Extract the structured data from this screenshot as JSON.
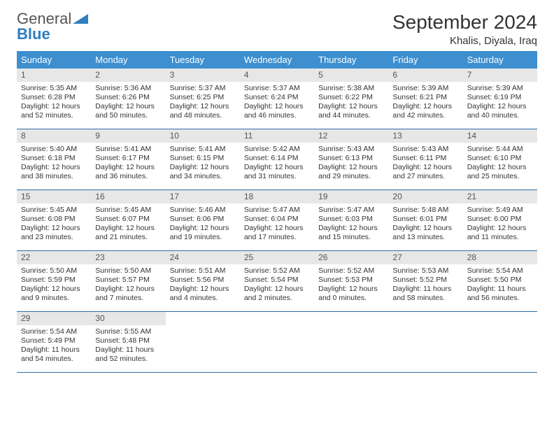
{
  "brand": {
    "word1": "General",
    "word2": "Blue"
  },
  "title": "September 2024",
  "location": "Khalis, Diyala, Iraq",
  "colors": {
    "header_bg": "#3d8fcf",
    "header_text": "#ffffff",
    "daynum_bg": "#e7e7e7",
    "row_border": "#2f6ea8",
    "brand_blue": "#2f7ec1"
  },
  "weekdays": [
    "Sunday",
    "Monday",
    "Tuesday",
    "Wednesday",
    "Thursday",
    "Friday",
    "Saturday"
  ],
  "cells": [
    {
      "day": "1",
      "sunrise": "5:35 AM",
      "sunset": "6:28 PM",
      "dl": "12 hours and 52 minutes."
    },
    {
      "day": "2",
      "sunrise": "5:36 AM",
      "sunset": "6:26 PM",
      "dl": "12 hours and 50 minutes."
    },
    {
      "day": "3",
      "sunrise": "5:37 AM",
      "sunset": "6:25 PM",
      "dl": "12 hours and 48 minutes."
    },
    {
      "day": "4",
      "sunrise": "5:37 AM",
      "sunset": "6:24 PM",
      "dl": "12 hours and 46 minutes."
    },
    {
      "day": "5",
      "sunrise": "5:38 AM",
      "sunset": "6:22 PM",
      "dl": "12 hours and 44 minutes."
    },
    {
      "day": "6",
      "sunrise": "5:39 AM",
      "sunset": "6:21 PM",
      "dl": "12 hours and 42 minutes."
    },
    {
      "day": "7",
      "sunrise": "5:39 AM",
      "sunset": "6:19 PM",
      "dl": "12 hours and 40 minutes."
    },
    {
      "day": "8",
      "sunrise": "5:40 AM",
      "sunset": "6:18 PM",
      "dl": "12 hours and 38 minutes."
    },
    {
      "day": "9",
      "sunrise": "5:41 AM",
      "sunset": "6:17 PM",
      "dl": "12 hours and 36 minutes."
    },
    {
      "day": "10",
      "sunrise": "5:41 AM",
      "sunset": "6:15 PM",
      "dl": "12 hours and 34 minutes."
    },
    {
      "day": "11",
      "sunrise": "5:42 AM",
      "sunset": "6:14 PM",
      "dl": "12 hours and 31 minutes."
    },
    {
      "day": "12",
      "sunrise": "5:43 AM",
      "sunset": "6:13 PM",
      "dl": "12 hours and 29 minutes."
    },
    {
      "day": "13",
      "sunrise": "5:43 AM",
      "sunset": "6:11 PM",
      "dl": "12 hours and 27 minutes."
    },
    {
      "day": "14",
      "sunrise": "5:44 AM",
      "sunset": "6:10 PM",
      "dl": "12 hours and 25 minutes."
    },
    {
      "day": "15",
      "sunrise": "5:45 AM",
      "sunset": "6:08 PM",
      "dl": "12 hours and 23 minutes."
    },
    {
      "day": "16",
      "sunrise": "5:45 AM",
      "sunset": "6:07 PM",
      "dl": "12 hours and 21 minutes."
    },
    {
      "day": "17",
      "sunrise": "5:46 AM",
      "sunset": "6:06 PM",
      "dl": "12 hours and 19 minutes."
    },
    {
      "day": "18",
      "sunrise": "5:47 AM",
      "sunset": "6:04 PM",
      "dl": "12 hours and 17 minutes."
    },
    {
      "day": "19",
      "sunrise": "5:47 AM",
      "sunset": "6:03 PM",
      "dl": "12 hours and 15 minutes."
    },
    {
      "day": "20",
      "sunrise": "5:48 AM",
      "sunset": "6:01 PM",
      "dl": "12 hours and 13 minutes."
    },
    {
      "day": "21",
      "sunrise": "5:49 AM",
      "sunset": "6:00 PM",
      "dl": "12 hours and 11 minutes."
    },
    {
      "day": "22",
      "sunrise": "5:50 AM",
      "sunset": "5:59 PM",
      "dl": "12 hours and 9 minutes."
    },
    {
      "day": "23",
      "sunrise": "5:50 AM",
      "sunset": "5:57 PM",
      "dl": "12 hours and 7 minutes."
    },
    {
      "day": "24",
      "sunrise": "5:51 AM",
      "sunset": "5:56 PM",
      "dl": "12 hours and 4 minutes."
    },
    {
      "day": "25",
      "sunrise": "5:52 AM",
      "sunset": "5:54 PM",
      "dl": "12 hours and 2 minutes."
    },
    {
      "day": "26",
      "sunrise": "5:52 AM",
      "sunset": "5:53 PM",
      "dl": "12 hours and 0 minutes."
    },
    {
      "day": "27",
      "sunrise": "5:53 AM",
      "sunset": "5:52 PM",
      "dl": "11 hours and 58 minutes."
    },
    {
      "day": "28",
      "sunrise": "5:54 AM",
      "sunset": "5:50 PM",
      "dl": "11 hours and 56 minutes."
    },
    {
      "day": "29",
      "sunrise": "5:54 AM",
      "sunset": "5:49 PM",
      "dl": "11 hours and 54 minutes."
    },
    {
      "day": "30",
      "sunrise": "5:55 AM",
      "sunset": "5:48 PM",
      "dl": "11 hours and 52 minutes."
    },
    {
      "empty": true
    },
    {
      "empty": true
    },
    {
      "empty": true
    },
    {
      "empty": true
    },
    {
      "empty": true
    }
  ],
  "labels": {
    "sunrise": "Sunrise:",
    "sunset": "Sunset:",
    "daylight": "Daylight:"
  }
}
